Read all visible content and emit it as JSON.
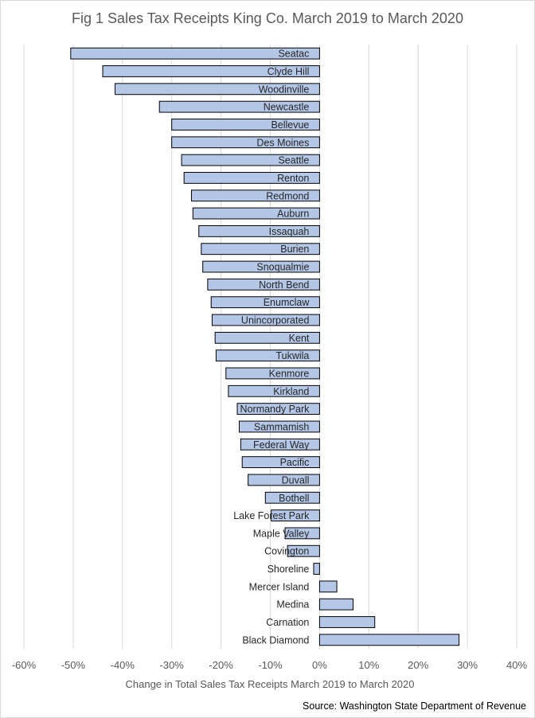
{
  "chart_data": {
    "type": "bar",
    "orientation": "horizontal",
    "title": "Fig 1 Sales Tax Receipts King Co. March 2019 to March 2020",
    "xlabel": "Change in Total Sales Tax Receipts March 2019 to March 2020",
    "ylabel": "",
    "xlim": [
      -0.6,
      0.4
    ],
    "x_ticks": [
      -0.6,
      -0.5,
      -0.4,
      -0.3,
      -0.2,
      -0.1,
      0,
      0.1,
      0.2,
      0.3,
      0.4
    ],
    "x_tick_labels": [
      "-60%",
      "-50%",
      "-40%",
      "-30%",
      "-20%",
      "-10%",
      "0%",
      "10%",
      "20%",
      "30%",
      "40%"
    ],
    "grid": "vertical",
    "source": "Source: Washington State Department of Revenue",
    "colors": {
      "bar_fill": "#b4c7e7",
      "bar_stroke": "#000000",
      "grid": "#d9d9d9"
    },
    "categories": [
      "Seatac",
      "Clyde Hill",
      "Woodinville",
      "Newcastle",
      "Bellevue",
      "Des Moines",
      "Seattle",
      "Renton",
      "Redmond",
      "Auburn",
      "Issaquah",
      "Burien",
      "Snoqualmie",
      "North Bend",
      "Enumclaw",
      "Unincorporated",
      "Kent",
      "Tukwila",
      "Kenmore",
      "Kirkland",
      "Normandy Park",
      "Sammamish",
      "Federal Way",
      "Pacific",
      "Duvall",
      "Bothell",
      "Lake Forest Park",
      "Maple Valley",
      "Covington",
      "Shoreline",
      "Mercer Island",
      "Medina",
      "Carnation",
      "Black Diamond"
    ],
    "values": [
      -0.505,
      -0.44,
      -0.415,
      -0.325,
      -0.3,
      -0.3,
      -0.28,
      -0.275,
      -0.26,
      -0.257,
      -0.245,
      -0.24,
      -0.237,
      -0.227,
      -0.22,
      -0.218,
      -0.212,
      -0.21,
      -0.19,
      -0.185,
      -0.167,
      -0.163,
      -0.16,
      -0.157,
      -0.145,
      -0.11,
      -0.098,
      -0.07,
      -0.065,
      -0.012,
      0.035,
      0.068,
      0.112,
      0.283
    ]
  }
}
